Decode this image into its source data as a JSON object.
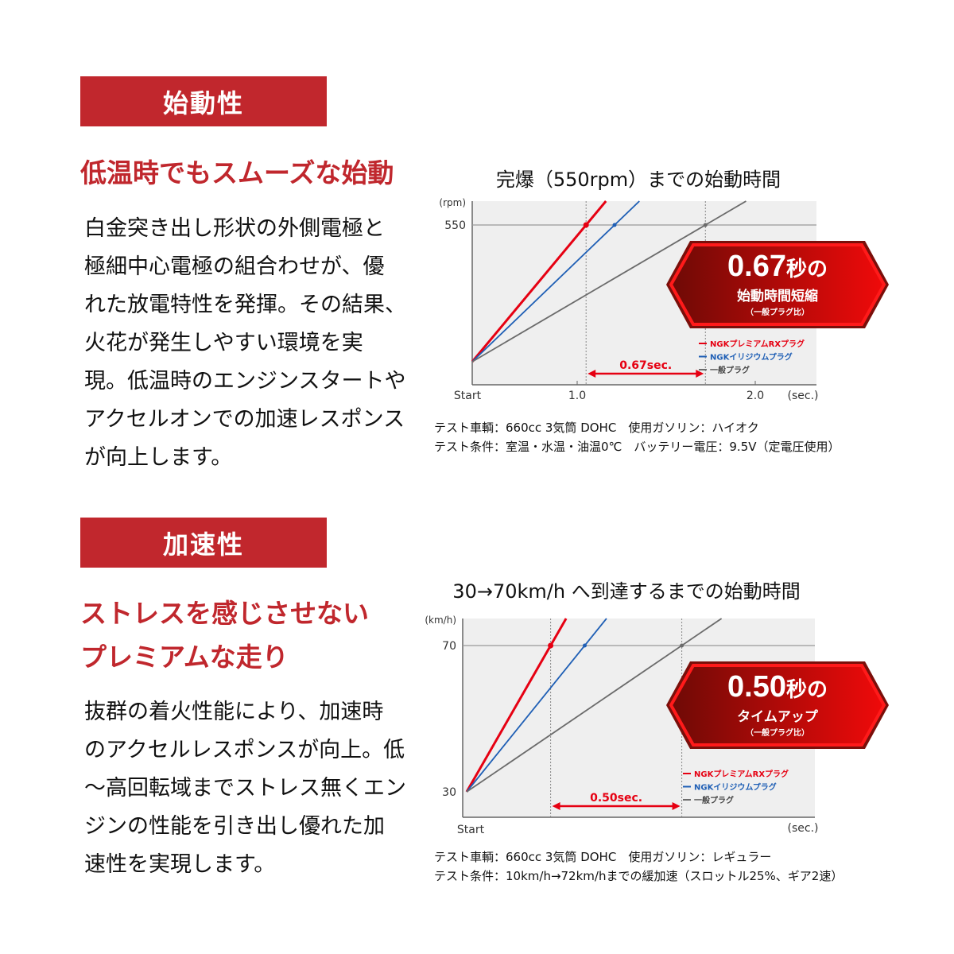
{
  "section1": {
    "header": "始動性",
    "headline": [
      "低温時でもスムーズな始動"
    ],
    "body": [
      "白金突き出し形状の外側電極と",
      "極細中心電極の組合わせが、優",
      "れた放電特性を発揮。その結果、",
      "火花が発生しやすい環境を実",
      "現。低温時のエンジンスタートや",
      "アクセルオンでの加速レスポンス",
      "が向上します。"
    ]
  },
  "section2": {
    "header": "加速性",
    "headline": [
      "ストレスを感じさせない",
      "プレミアムな走り"
    ],
    "body": [
      "抜群の着火性能により、加速時",
      "のアクセルレスポンスが向上。低",
      "～高回転域までストレス無くエン",
      "ジンの性能を引き出し優れた加",
      "速性を実現します。"
    ]
  },
  "colors": {
    "section_red": "#c1272d",
    "premium": "#e60012",
    "iridium": "#1f5fb5",
    "standard": "#6b6b6b"
  },
  "chart_data": [
    {
      "type": "line",
      "title": "完爆（550rpm）までの始動時間",
      "ylabel": "(rpm)",
      "xlabel": "(sec.)",
      "xticks": [
        {
          "label": "Start"
        },
        {
          "value": 1.0,
          "label": "1.0"
        },
        {
          "value": 2.0,
          "label": "2.0"
        }
      ],
      "yticks": [
        {
          "value": 550,
          "label": "550"
        }
      ],
      "grid": false,
      "legend_position": "bottom-right",
      "series": [
        {
          "name": "NGKプレミアムRXプラグ",
          "color": "#e60012",
          "reach_time": 1.05
        },
        {
          "name": "NGKイリジウムプラグ",
          "color": "#1f5fb5",
          "reach_time": 1.21
        },
        {
          "name": "一般プラグ",
          "color": "#6b6b6b",
          "reach_time": 1.72
        }
      ],
      "target": 550,
      "difference_label": "0.67sec.",
      "badge": {
        "value": "0.67",
        "unit": "秒の",
        "text": "始動時間短縮",
        "compare": "（一般プラグ比）"
      },
      "notes": [
        "テスト車輌：660cc 3気筒 DOHC　使用ガソリン：ハイオク",
        "テスト条件：室温・水温・油温0℃　バッテリー電圧：9.5V（定電圧使用）"
      ]
    },
    {
      "type": "line",
      "title": "30→70km/h へ到達するまでの始動時間",
      "ylabel": "(km/h)",
      "xlabel": "(sec.)",
      "xticks": [
        {
          "label": "Start"
        }
      ],
      "yticks": [
        {
          "value": 30,
          "label": "30"
        },
        {
          "value": 70,
          "label": "70"
        }
      ],
      "grid": false,
      "legend_position": "bottom-right",
      "series": [
        {
          "name": "NGKプレミアムRXプラグ",
          "color": "#e60012",
          "reach_time": 0.32
        },
        {
          "name": "NGKイリジウムプラグ",
          "color": "#1f5fb5",
          "reach_time": 0.45
        },
        {
          "name": "一般プラグ",
          "color": "#6b6b6b",
          "reach_time": 0.82
        }
      ],
      "start_value": 30,
      "target": 70,
      "difference_label": "0.50sec.",
      "badge": {
        "value": "0.50",
        "unit": "秒の",
        "text": "タイムアップ",
        "compare": "（一般プラグ比）"
      },
      "notes": [
        "テスト車輌：660cc 3気筒 DOHC　使用ガソリン：レギュラー",
        "テスト条件：10km/h→72km/hまでの緩加速（スロットル25%、ギア2速）"
      ]
    }
  ]
}
